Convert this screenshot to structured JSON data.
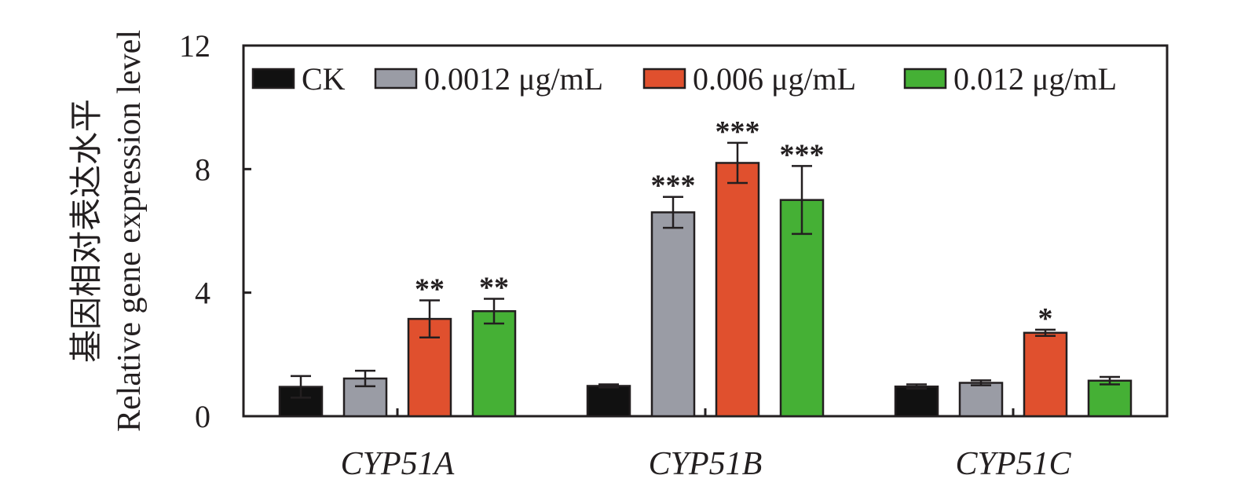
{
  "chart_data": {
    "type": "bar",
    "categories": [
      "CYP51A",
      "CYP51B",
      "CYP51C"
    ],
    "series": [
      {
        "name": "CK",
        "color": "#111111",
        "values": [
          0.95,
          0.98,
          0.96
        ],
        "errors": [
          0.35,
          0.05,
          0.07
        ],
        "sig": [
          "",
          "",
          ""
        ]
      },
      {
        "name": "0.0012 μg/mL",
        "color": "#9a9ca5",
        "values": [
          1.22,
          6.6,
          1.08
        ],
        "errors": [
          0.25,
          0.5,
          0.08
        ],
        "sig": [
          "",
          "***",
          ""
        ]
      },
      {
        "name": "0.006 μg/mL",
        "color": "#e0502e",
        "values": [
          3.15,
          8.2,
          2.7
        ],
        "errors": [
          0.6,
          0.65,
          0.1
        ],
        "sig": [
          "**",
          "***",
          "*"
        ]
      },
      {
        "name": "0.012 μg/mL",
        "color": "#45b035",
        "values": [
          3.4,
          7.0,
          1.15
        ],
        "errors": [
          0.4,
          1.1,
          0.12
        ],
        "sig": [
          "**",
          "***",
          ""
        ]
      }
    ],
    "ylim": [
      0,
      12
    ],
    "yticks": [
      "0",
      "4",
      "8",
      "12"
    ],
    "ylabel_zh": "基因相对表达水平",
    "ylabel_en": "Relative gene expression level",
    "xlabel": "",
    "legend": "top-inside"
  }
}
